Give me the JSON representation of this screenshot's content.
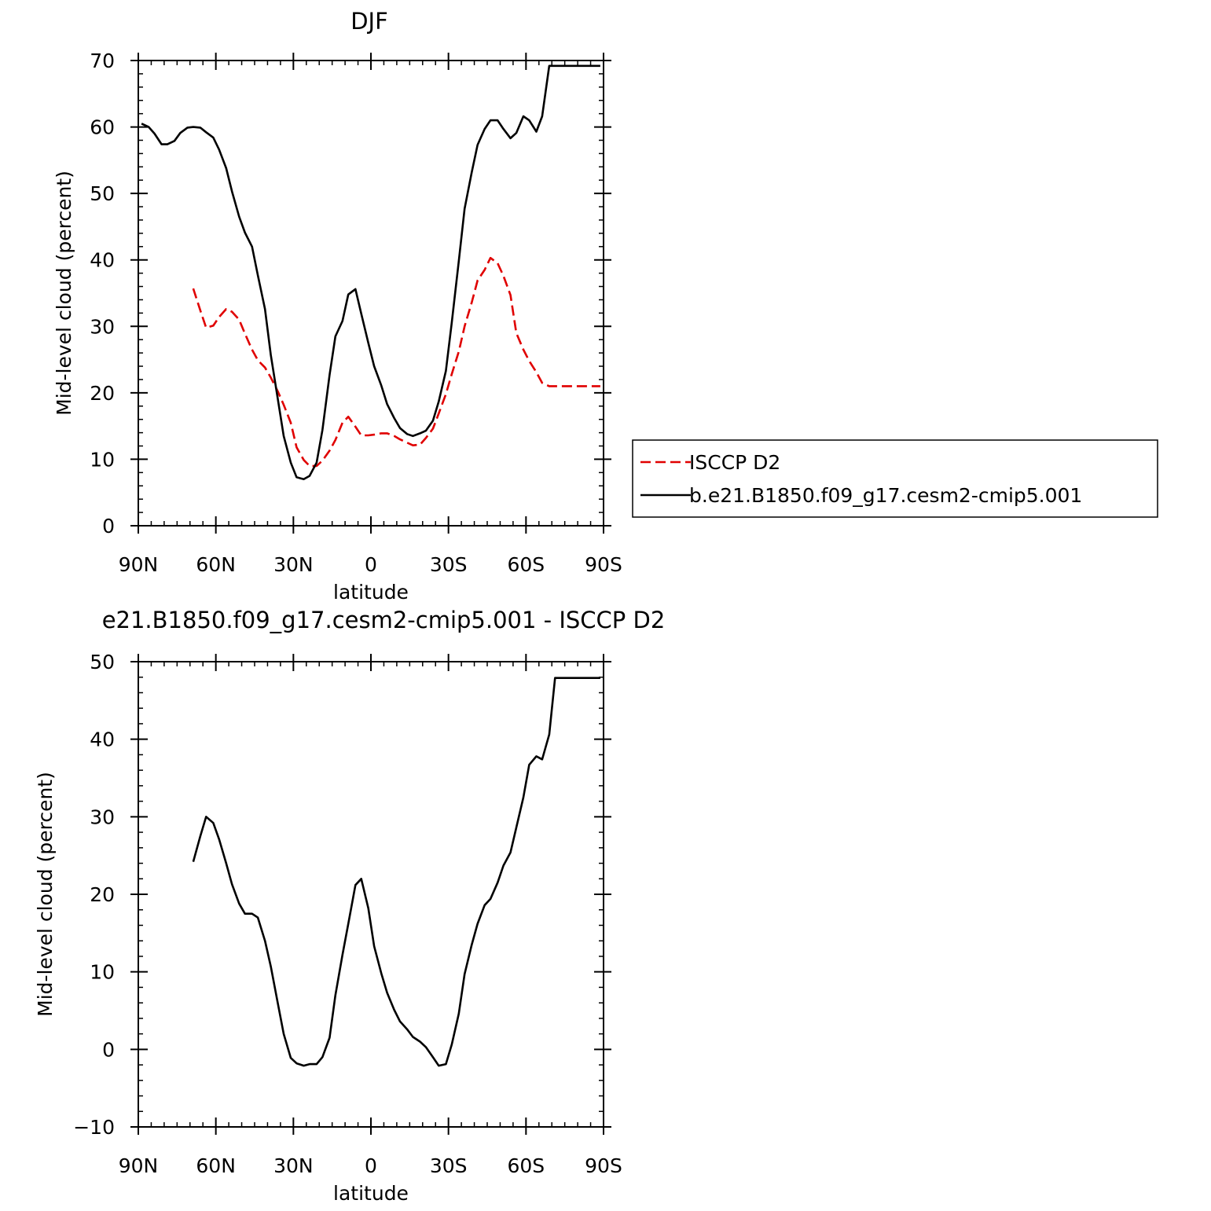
{
  "colors": {
    "model": "#000000",
    "obs": "#e00000",
    "axis": "#000000",
    "background": "#ffffff"
  },
  "chart_data": [
    {
      "type": "line",
      "title": "DJF",
      "xlabel": "latitude",
      "ylabel": "Mid-level cloud (percent)",
      "xlim": [
        -90,
        90
      ],
      "ylim": [
        0,
        70
      ],
      "x_ticks": [
        -90,
        -60,
        -30,
        0,
        30,
        60,
        90
      ],
      "x_tick_labels": [
        "90N",
        "60N",
        "30N",
        "0",
        "30S",
        "60S",
        "90S"
      ],
      "y_ticks": [
        0,
        10,
        20,
        30,
        40,
        50,
        60,
        70
      ],
      "y_tick_labels": [
        "0",
        "10",
        "20",
        "30",
        "40",
        "50",
        "60",
        "70"
      ],
      "grid": false,
      "legend": {
        "placement": "right",
        "entries": [
          "ISCCP D2",
          "b.e21.B1850.f09_g17.cesm2-cmip5.001"
        ]
      },
      "series": [
        {
          "name": "ISCCP D2",
          "style": "dashed",
          "color": "#e00000",
          "x": [
            -68.75,
            -66,
            -63.75,
            -61,
            -58.75,
            -56,
            -53.75,
            -51,
            -48.75,
            -46,
            -43.75,
            -41,
            -38.75,
            -36,
            -33.75,
            -31,
            -28.75,
            -26,
            -23.75,
            -21,
            -18.75,
            -16,
            -13.75,
            -11,
            -8.75,
            -6,
            -3.75,
            -1,
            1.25,
            4,
            6.25,
            9,
            11.25,
            14,
            16.25,
            19,
            21.25,
            24,
            26.25,
            29,
            31.25,
            34,
            36.25,
            39,
            41.25,
            44,
            46.25,
            49,
            51.25,
            54,
            56.25,
            59,
            61.25,
            64,
            66.25,
            69,
            71.25,
            74,
            76.25,
            79,
            81.25,
            84,
            86.25,
            88.75
          ],
          "values": [
            35.7,
            32.4,
            29.8,
            30.1,
            31.4,
            32.6,
            32.2,
            31.0,
            28.9,
            26.5,
            24.9,
            23.8,
            22.3,
            20.2,
            18.2,
            15.5,
            11.8,
            9.9,
            9.0,
            9.0,
            9.8,
            11.3,
            12.9,
            15.5,
            16.4,
            14.9,
            13.6,
            13.6,
            13.7,
            13.9,
            13.9,
            13.5,
            13.0,
            12.5,
            12.1,
            12.2,
            13.2,
            14.6,
            16.9,
            19.8,
            22.8,
            26.2,
            30.0,
            33.6,
            36.9,
            38.5,
            40.3,
            39.5,
            37.6,
            34.7,
            29.0,
            26.5,
            24.8,
            23.1,
            21.5,
            21.0,
            21.0,
            21.0,
            21.0,
            21.0,
            21.0,
            21.0,
            21.0,
            21.0
          ]
        },
        {
          "name": "b.e21.B1850.f09_g17.cesm2-cmip5.001",
          "style": "solid",
          "color": "#000000",
          "x": [
            -88.75,
            -86,
            -83.75,
            -81,
            -78.75,
            -76,
            -73.75,
            -71,
            -68.75,
            -66,
            -63.75,
            -61,
            -58.75,
            -56,
            -53.75,
            -51,
            -48.75,
            -46,
            -43.75,
            -41,
            -38.75,
            -36,
            -33.75,
            -31,
            -28.75,
            -26,
            -23.75,
            -21,
            -18.75,
            -16,
            -13.75,
            -11,
            -8.75,
            -6,
            -3.75,
            -1,
            1.25,
            4,
            6.25,
            9,
            11.25,
            14,
            16.25,
            19,
            21.25,
            24,
            26.25,
            29,
            31.25,
            34,
            36.25,
            39,
            41.25,
            44,
            46.25,
            49,
            51.25,
            54,
            56.25,
            59,
            61.25,
            64,
            66.25,
            69,
            71.25,
            74,
            76.25,
            79,
            81.25,
            84,
            86.25,
            88.75
          ],
          "values": [
            60.5,
            60.0,
            59.0,
            57.4,
            57.4,
            57.9,
            59.1,
            59.9,
            60.0,
            59.9,
            59.2,
            58.4,
            56.6,
            53.8,
            50.3,
            46.5,
            44.1,
            42.0,
            37.7,
            32.6,
            25.7,
            19.0,
            13.5,
            9.5,
            7.3,
            7.0,
            7.5,
            9.5,
            14.4,
            22.7,
            28.5,
            30.8,
            34.8,
            35.6,
            31.9,
            27.5,
            24.0,
            21.1,
            18.3,
            16.2,
            14.7,
            13.8,
            13.5,
            13.9,
            14.3,
            15.8,
            18.7,
            23.3,
            30.5,
            39.8,
            47.7,
            53.2,
            57.3,
            59.7,
            61.0,
            61.0,
            59.7,
            58.3,
            59.1,
            61.6,
            61.0,
            59.3,
            61.6,
            69.2,
            69.2,
            69.2,
            69.2,
            69.2,
            69.2,
            69.2,
            69.2,
            69.2
          ]
        }
      ]
    },
    {
      "type": "line",
      "title": "e21.B1850.f09_g17.cesm2-cmip5.001 - ISCCP D2",
      "xlabel": "latitude",
      "ylabel": "Mid-level cloud (percent)",
      "xlim": [
        -90,
        90
      ],
      "ylim": [
        -10,
        50
      ],
      "x_ticks": [
        -90,
        -60,
        -30,
        0,
        30,
        60,
        90
      ],
      "x_tick_labels": [
        "90N",
        "60N",
        "30N",
        "0",
        "30S",
        "60S",
        "90S"
      ],
      "y_ticks": [
        -10,
        0,
        10,
        20,
        30,
        40,
        50
      ],
      "y_tick_labels": [
        "−10",
        "0",
        "10",
        "20",
        "30",
        "40",
        "50"
      ],
      "grid": false,
      "series": [
        {
          "style": "solid",
          "color": "#000000",
          "x": [
            -68.75,
            -66,
            -63.75,
            -61,
            -58.75,
            -56,
            -53.75,
            -51,
            -48.75,
            -46,
            -43.75,
            -41,
            -38.75,
            -36,
            -33.75,
            -31,
            -28.75,
            -26,
            -23.75,
            -21,
            -18.75,
            -16,
            -13.75,
            -11,
            -8.75,
            -6,
            -3.75,
            -1,
            1.25,
            4,
            6.25,
            9,
            11.25,
            14,
            16.25,
            19,
            21.25,
            24,
            26.25,
            29,
            31.25,
            34,
            36.25,
            39,
            41.25,
            44,
            46.25,
            49,
            51.25,
            54,
            56.25,
            59,
            61.25,
            64,
            66.25,
            69,
            71.25,
            74,
            76.25,
            79,
            81.25,
            84,
            86.25,
            88.75
          ],
          "values": [
            24.2,
            27.5,
            30.0,
            29.2,
            27.1,
            24.0,
            21.3,
            18.8,
            17.5,
            17.5,
            17.0,
            14.0,
            10.7,
            5.9,
            2.0,
            -1.1,
            -1.8,
            -2.1,
            -1.9,
            -1.9,
            -1.0,
            1.5,
            7.0,
            12.2,
            16.2,
            21.2,
            22.0,
            18.2,
            13.3,
            9.8,
            7.3,
            5.1,
            3.6,
            2.6,
            1.6,
            1.0,
            0.3,
            -1.0,
            -2.1,
            -1.9,
            0.6,
            4.6,
            9.7,
            13.5,
            16.2,
            18.6,
            19.4,
            21.5,
            23.7,
            25.4,
            28.6,
            32.5,
            36.7,
            37.8,
            37.4,
            40.6,
            47.9,
            47.9,
            47.9,
            47.9,
            47.9,
            47.9,
            47.9,
            47.9
          ]
        }
      ]
    }
  ]
}
